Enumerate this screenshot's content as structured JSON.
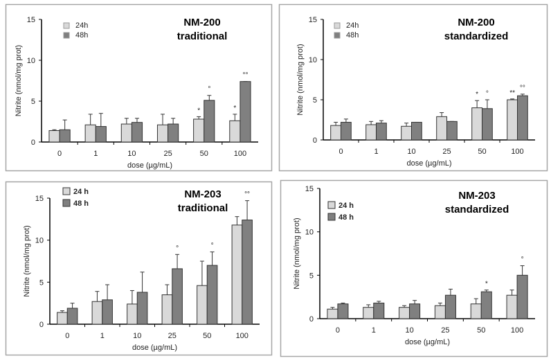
{
  "colors": {
    "h24": "#d9d9d9",
    "h48": "#808080",
    "border": "#a6a6a6",
    "axis": "#000000"
  },
  "chart_data": [
    {
      "type": "bar",
      "title": [
        "NM-200",
        "traditional"
      ],
      "xlabel": "dose (µg/mL)",
      "ylabel": "Nitrite (nmol/mg prot)",
      "ylim": [
        0,
        15
      ],
      "yticks": [
        "0",
        "5",
        "10",
        "15"
      ],
      "categories": [
        "0",
        "1",
        "10",
        "25",
        "50",
        "100"
      ],
      "legend_position": "top-left",
      "series": [
        {
          "name": "24h",
          "values": [
            1.4,
            2.1,
            2.2,
            2.1,
            2.8,
            2.6
          ],
          "error_top": [
            1.5,
            3.4,
            2.9,
            3.4,
            3.1,
            3.4
          ],
          "annotations": [
            "",
            "",
            "",
            "",
            "*",
            "*"
          ]
        },
        {
          "name": "48h",
          "values": [
            1.5,
            1.9,
            2.4,
            2.2,
            5.1,
            7.4
          ],
          "error_top": [
            2.7,
            3.5,
            2.9,
            2.9,
            5.7,
            7.4
          ],
          "annotations": [
            "",
            "",
            "",
            "",
            "°",
            "°°"
          ]
        }
      ]
    },
    {
      "type": "bar",
      "title": [
        "NM-200",
        "standardized"
      ],
      "xlabel": "dose (µg/mL)",
      "ylabel": "Nitrite (nmol/mg prot)",
      "ylim": [
        0,
        15
      ],
      "yticks": [
        "0",
        "5",
        "10",
        "15"
      ],
      "categories": [
        "0",
        "1",
        "10",
        "25",
        "50",
        "100"
      ],
      "legend_position": "top-left",
      "series": [
        {
          "name": "24h",
          "values": [
            1.8,
            1.9,
            1.7,
            2.9,
            4.0,
            5.0
          ],
          "error_top": [
            2.2,
            2.3,
            2.1,
            3.4,
            4.9,
            5.1
          ],
          "annotations": [
            "",
            "",
            "",
            "",
            "*",
            "**"
          ]
        },
        {
          "name": "48h",
          "values": [
            2.2,
            2.1,
            2.2,
            2.3,
            3.9,
            5.5
          ],
          "error_top": [
            2.6,
            2.4,
            2.2,
            2.3,
            5.0,
            5.7
          ],
          "annotations": [
            "",
            "",
            "",
            "",
            "°",
            "°°"
          ]
        }
      ]
    },
    {
      "type": "bar",
      "title": [
        "NM-203",
        "traditional"
      ],
      "xlabel": "dose (µg/mL)",
      "ylabel": "Nitrite (nmol/mg prot)",
      "ylim": [
        0,
        15
      ],
      "yticks": [
        "0",
        "5",
        "10",
        "15"
      ],
      "categories": [
        "0",
        "1",
        "10",
        "25",
        "50",
        "100"
      ],
      "legend_position": "top-left",
      "series": [
        {
          "name": "24 h",
          "values": [
            1.4,
            2.7,
            2.4,
            3.5,
            4.6,
            11.8
          ],
          "error_top": [
            1.6,
            3.9,
            4.0,
            4.7,
            7.5,
            12.8
          ],
          "annotations": [
            "",
            "",
            "",
            "",
            "",
            ""
          ]
        },
        {
          "name": "48 h",
          "values": [
            1.9,
            2.9,
            3.8,
            6.6,
            7.0,
            12.4
          ],
          "error_top": [
            2.5,
            4.7,
            6.2,
            8.3,
            8.6,
            14.7
          ],
          "annotations": [
            "",
            "",
            "",
            "°",
            "°",
            "°°"
          ]
        }
      ]
    },
    {
      "type": "bar",
      "title": [
        "NM-203",
        "standardized"
      ],
      "xlabel": "dose (µg/mL)",
      "ylabel": "Nitrite (nmol/mg prot)",
      "ylim": [
        0,
        15
      ],
      "yticks": [
        "0",
        "5",
        "10",
        "15"
      ],
      "categories": [
        "0",
        "1",
        "10",
        "25",
        "50",
        "100"
      ],
      "legend_position": "top-left",
      "series": [
        {
          "name": "24 h",
          "values": [
            1.1,
            1.3,
            1.3,
            1.5,
            1.7,
            2.7
          ],
          "error_top": [
            1.3,
            1.6,
            1.5,
            1.8,
            2.3,
            3.3
          ],
          "annotations": [
            "",
            "",
            "",
            "",
            "",
            ""
          ]
        },
        {
          "name": "48 h",
          "values": [
            1.7,
            1.8,
            1.7,
            2.7,
            3.1,
            5.0
          ],
          "error_top": [
            1.8,
            2.0,
            2.1,
            3.4,
            3.3,
            6.1
          ],
          "annotations": [
            "",
            "",
            "",
            "",
            "*",
            "°"
          ]
        }
      ]
    }
  ]
}
